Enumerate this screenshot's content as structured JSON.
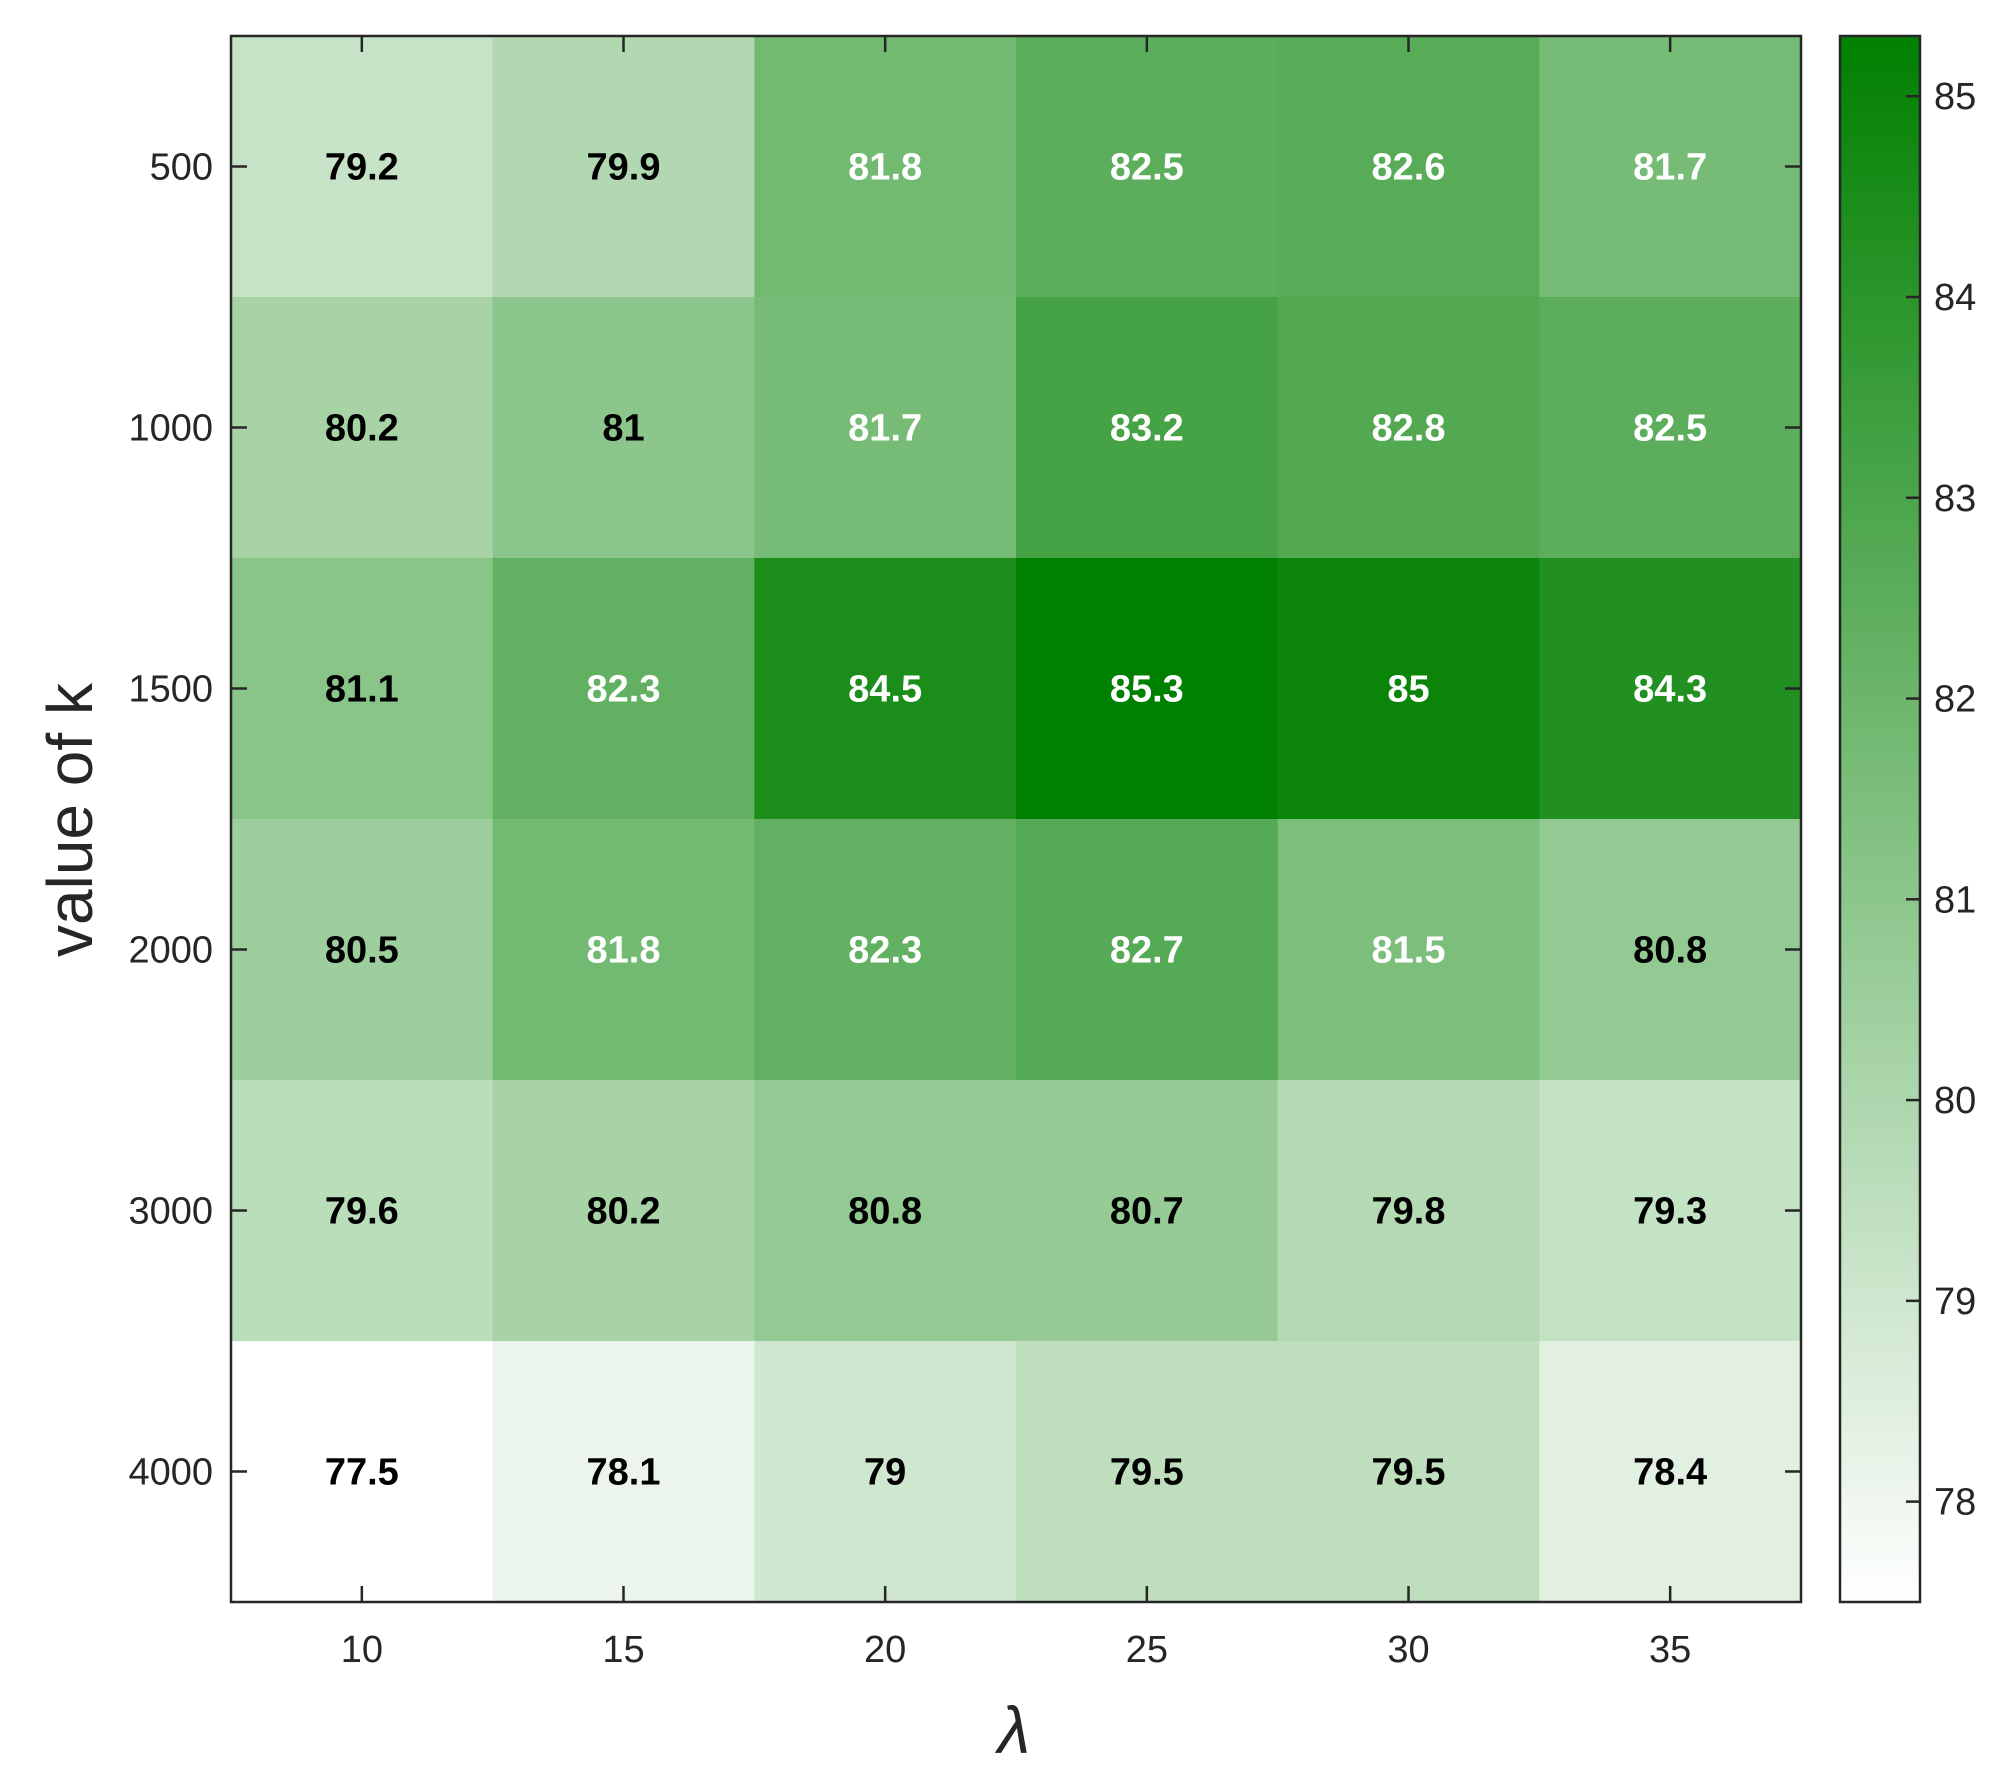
{
  "chart_data": {
    "type": "heatmap",
    "title": "",
    "xlabel": "λ",
    "ylabel": "value of k",
    "x": [
      "10",
      "15",
      "20",
      "25",
      "30",
      "35"
    ],
    "y": [
      "500",
      "1000",
      "1500",
      "2000",
      "3000",
      "4000"
    ],
    "values": [
      [
        79.2,
        79.9,
        81.8,
        82.5,
        82.6,
        81.7
      ],
      [
        80.2,
        81,
        81.7,
        83.2,
        82.8,
        82.5
      ],
      [
        81.1,
        82.3,
        84.5,
        85.3,
        85,
        84.3
      ],
      [
        80.5,
        81.8,
        82.3,
        82.7,
        81.5,
        80.8
      ],
      [
        79.6,
        80.2,
        80.8,
        80.7,
        79.8,
        79.3
      ],
      [
        77.5,
        78.1,
        79,
        79.5,
        79.5,
        78.4
      ]
    ],
    "value_labels": [
      [
        "79.2",
        "79.9",
        "81.8",
        "82.5",
        "82.6",
        "81.7"
      ],
      [
        "80.2",
        "81",
        "81.7",
        "83.2",
        "82.8",
        "82.5"
      ],
      [
        "81.1",
        "82.3",
        "84.5",
        "85.3",
        "85",
        "84.3"
      ],
      [
        "80.5",
        "81.8",
        "82.3",
        "82.7",
        "81.5",
        "80.8"
      ],
      [
        "79.6",
        "80.2",
        "80.8",
        "80.7",
        "79.8",
        "79.3"
      ],
      [
        "77.5",
        "78.1",
        "79",
        "79.5",
        "79.5",
        "78.4"
      ]
    ],
    "colorbar": {
      "range": [
        77.5,
        85.3
      ],
      "ticks": [
        78,
        79,
        80,
        81,
        82,
        83,
        84,
        85
      ],
      "tick_labels": [
        "78",
        "79",
        "80",
        "81",
        "82",
        "83",
        "84",
        "85"
      ]
    },
    "colors": {
      "low": "#ffffff",
      "high": "#008000",
      "light_text": "#ffffff",
      "dark_text": "#000000",
      "axis": "#262626"
    }
  }
}
